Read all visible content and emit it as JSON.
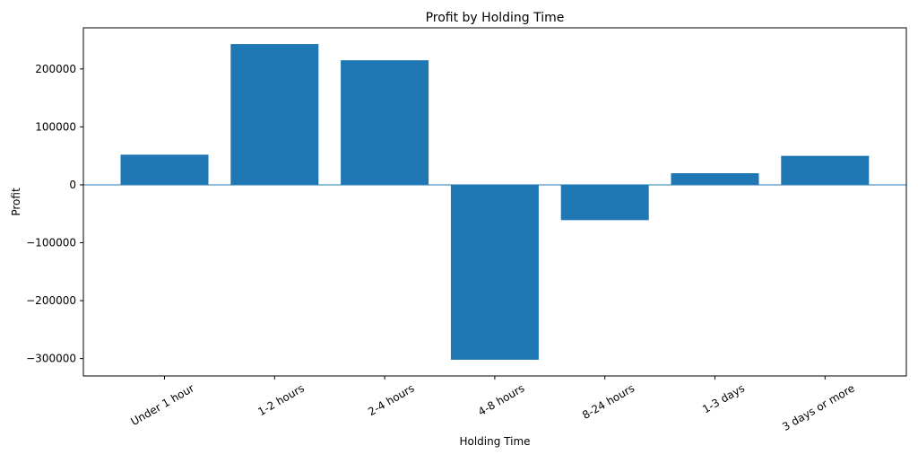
{
  "chart_data": {
    "type": "bar",
    "title": "Profit by Holding Time",
    "xlabel": "Holding Time",
    "ylabel": "Profit",
    "categories": [
      "Under 1 hour",
      "1-2 hours",
      "2-4 hours",
      "4-8 hours",
      "8-24 hours",
      "1-3 days",
      "3 days or more"
    ],
    "values": [
      52000,
      243000,
      215000,
      -302000,
      -61000,
      20000,
      50000
    ],
    "ylim": [
      -330000,
      271000
    ],
    "yticks": [
      -300000,
      -200000,
      -100000,
      0,
      100000,
      200000
    ],
    "ytick_labels": [
      "−300000",
      "−200000",
      "−100000",
      "0",
      "100000",
      "200000"
    ],
    "grid": false,
    "legend": "none",
    "bar_color": "#1f77b4",
    "zero_line_color": "#1f77b4"
  }
}
